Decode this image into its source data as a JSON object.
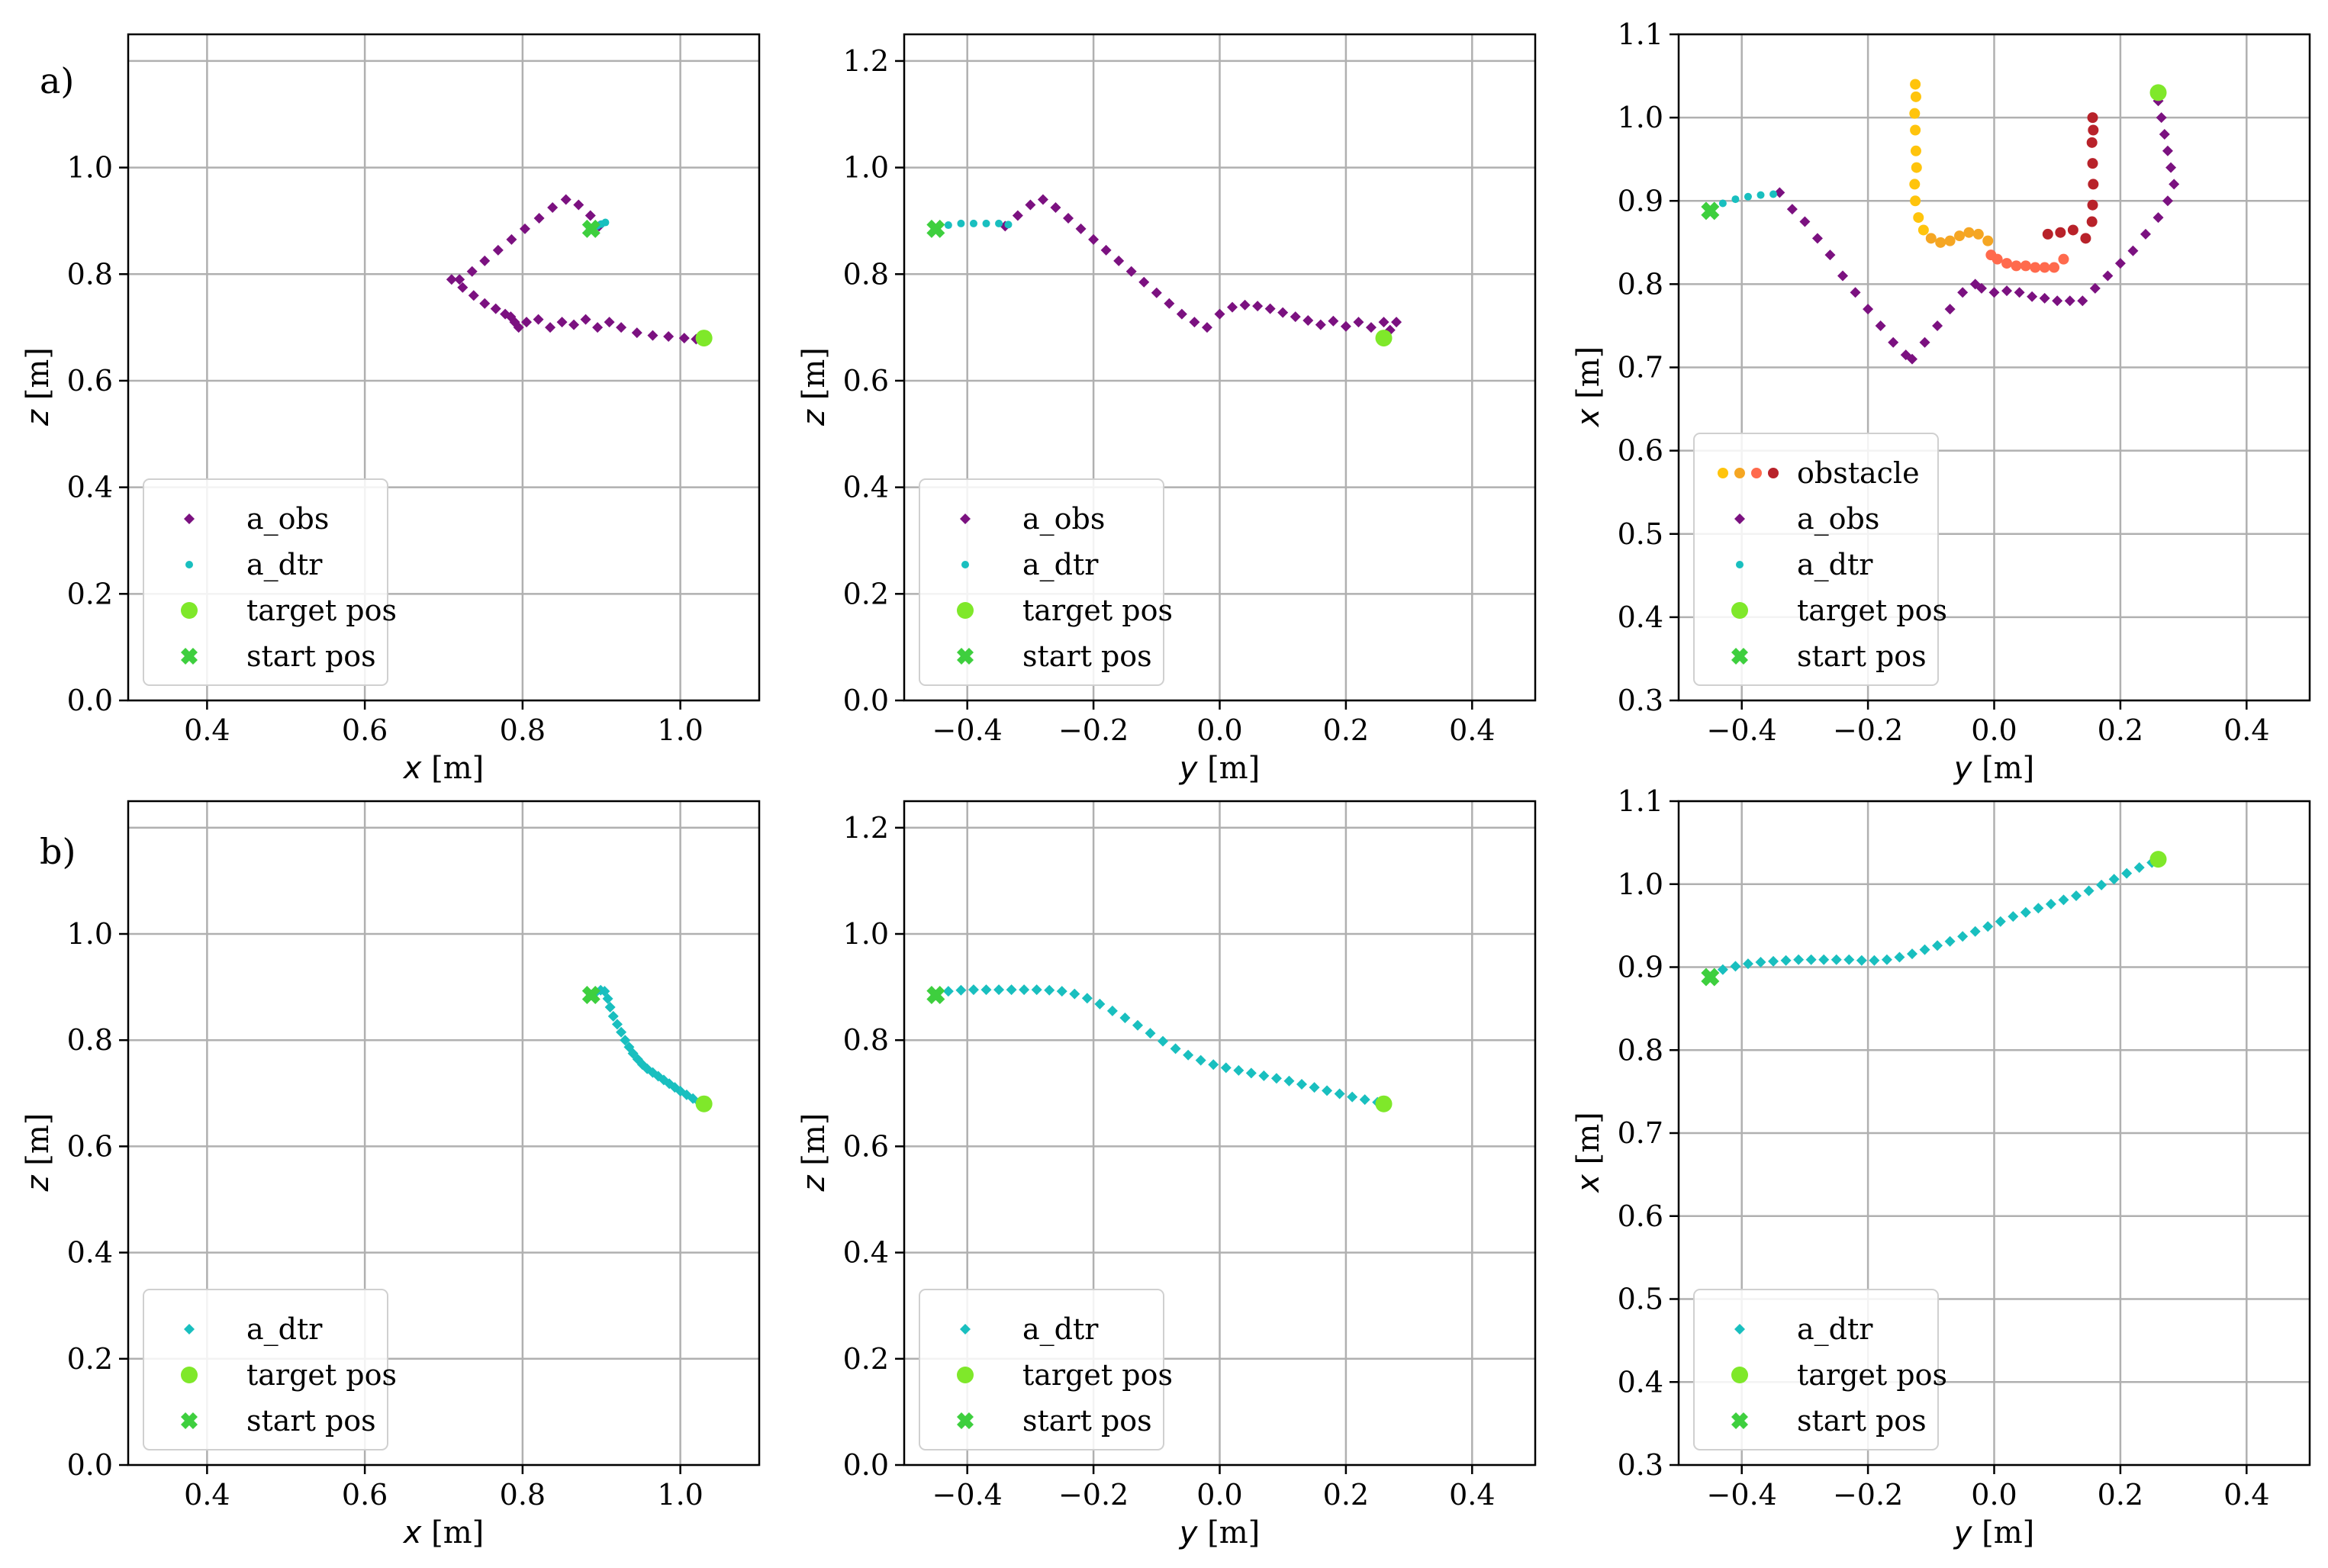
{
  "panel_labels": [
    "a)",
    "b)"
  ],
  "colors": {
    "a_obs": "#7b1180",
    "a_dtr": "#19bfbf",
    "target": "#7fe82a",
    "start": "#3ecf3e",
    "grid": "#b0b0b0",
    "obstacle": [
      "#ffc40c",
      "#f5a623",
      "#ff6a4d",
      "#b8222a"
    ]
  },
  "legend_labels": {
    "obstacle": "obstacle",
    "a_obs": "a_obs",
    "a_dtr": "a_dtr",
    "target": "target pos",
    "start": "start pos"
  },
  "chart_data": [
    {
      "id": "a1",
      "type": "scatter",
      "xlabel_var": "x",
      "xlabel_unit": " [m]",
      "ylabel_var": "z",
      "ylabel_unit": " [m]",
      "xlim": [
        0.3,
        1.1
      ],
      "ylim": [
        0,
        1.25
      ],
      "xticks": [
        "0.4",
        "0.6",
        "0.8",
        "1.0"
      ],
      "yticks": [
        "0.0",
        "0.2",
        "0.4",
        "0.6",
        "0.8",
        "1.0"
      ],
      "xtick_values": [
        0.4,
        0.6,
        0.8,
        1.0
      ],
      "ytick_values": [
        0.0,
        0.2,
        0.4,
        0.6,
        0.8,
        1.0
      ],
      "grid_values_y": [
        0.0,
        0.2,
        0.4,
        0.6,
        0.8,
        1.0,
        1.2
      ],
      "legend": [
        "a_obs",
        "a_dtr",
        "target",
        "start"
      ],
      "series": [
        {
          "name": "a_obs",
          "marker": "diamond",
          "x": [
            0.897,
            0.886,
            0.871,
            0.855,
            0.838,
            0.821,
            0.803,
            0.786,
            0.769,
            0.752,
            0.736,
            0.72,
            0.71,
            0.724,
            0.738,
            0.752,
            0.766,
            0.778,
            0.785,
            0.79,
            0.795,
            0.805,
            0.82,
            0.835,
            0.85,
            0.865,
            0.88,
            0.895,
            0.91,
            0.925,
            0.945,
            0.965,
            0.985,
            1.005,
            1.02
          ],
          "y": [
            0.89,
            0.91,
            0.93,
            0.94,
            0.925,
            0.905,
            0.885,
            0.865,
            0.845,
            0.825,
            0.805,
            0.79,
            0.79,
            0.775,
            0.76,
            0.745,
            0.735,
            0.725,
            0.72,
            0.71,
            0.7,
            0.71,
            0.715,
            0.7,
            0.71,
            0.705,
            0.715,
            0.7,
            0.71,
            0.7,
            0.69,
            0.685,
            0.683,
            0.68,
            0.678
          ]
        },
        {
          "name": "a_dtr",
          "marker": "dot",
          "x": [
            0.885,
            0.89,
            0.895,
            0.9,
            0.905
          ],
          "y": [
            0.885,
            0.888,
            0.891,
            0.894,
            0.897
          ]
        }
      ],
      "target": [
        1.03,
        0.68
      ],
      "start": [
        0.887,
        0.885
      ]
    },
    {
      "id": "a2",
      "type": "scatter",
      "xlabel_var": "y",
      "xlabel_unit": " [m]",
      "ylabel_var": "z",
      "ylabel_unit": " [m]",
      "xlim": [
        -0.5,
        0.5
      ],
      "ylim": [
        0,
        1.25
      ],
      "xticks": [
        "−0.4",
        "−0.2",
        "0.0",
        "0.2",
        "0.4"
      ],
      "yticks": [
        "0.0",
        "0.2",
        "0.4",
        "0.6",
        "0.8",
        "1.0",
        "1.2"
      ],
      "xtick_values": [
        -0.4,
        -0.2,
        0.0,
        0.2,
        0.4
      ],
      "ytick_values": [
        0.0,
        0.2,
        0.4,
        0.6,
        0.8,
        1.0,
        1.2
      ],
      "grid_values_y": [
        0.0,
        0.2,
        0.4,
        0.6,
        0.8,
        1.0,
        1.2
      ],
      "legend": [
        "a_obs",
        "a_dtr",
        "target",
        "start"
      ],
      "series": [
        {
          "name": "a_obs",
          "marker": "diamond",
          "x": [
            -0.34,
            -0.32,
            -0.3,
            -0.28,
            -0.26,
            -0.24,
            -0.22,
            -0.2,
            -0.18,
            -0.16,
            -0.14,
            -0.12,
            -0.1,
            -0.08,
            -0.06,
            -0.04,
            -0.02,
            0.0,
            0.02,
            0.04,
            0.06,
            0.08,
            0.1,
            0.12,
            0.14,
            0.16,
            0.18,
            0.2,
            0.22,
            0.24,
            0.26,
            0.27,
            0.28
          ],
          "y": [
            0.89,
            0.91,
            0.93,
            0.94,
            0.925,
            0.905,
            0.885,
            0.865,
            0.845,
            0.825,
            0.805,
            0.785,
            0.765,
            0.745,
            0.725,
            0.71,
            0.7,
            0.725,
            0.738,
            0.742,
            0.74,
            0.735,
            0.728,
            0.72,
            0.713,
            0.705,
            0.712,
            0.702,
            0.71,
            0.7,
            0.71,
            0.695,
            0.71
          ]
        },
        {
          "name": "a_dtr",
          "marker": "dot",
          "x": [
            -0.45,
            -0.43,
            -0.41,
            -0.39,
            -0.37,
            -0.35,
            -0.335
          ],
          "y": [
            0.885,
            0.892,
            0.895,
            0.895,
            0.895,
            0.895,
            0.893
          ]
        }
      ],
      "target": [
        0.26,
        0.68
      ],
      "start": [
        -0.45,
        0.885
      ]
    },
    {
      "id": "a3",
      "type": "scatter",
      "xlabel_var": "y",
      "xlabel_unit": " [m]",
      "ylabel_var": "x",
      "ylabel_unit": " [m]",
      "xlim": [
        -0.5,
        0.5
      ],
      "ylim": [
        0.3,
        1.1
      ],
      "xticks": [
        "−0.4",
        "−0.2",
        "0.0",
        "0.2",
        "0.4"
      ],
      "yticks": [
        "0.3",
        "0.4",
        "0.5",
        "0.6",
        "0.7",
        "0.8",
        "0.9",
        "1.0",
        "1.1"
      ],
      "xtick_values": [
        -0.4,
        -0.2,
        0.0,
        0.2,
        0.4
      ],
      "ytick_values": [
        0.3,
        0.4,
        0.5,
        0.6,
        0.7,
        0.8,
        0.9,
        1.0,
        1.1
      ],
      "grid_values_y": [
        0.3,
        0.4,
        0.5,
        0.6,
        0.7,
        0.8,
        0.9,
        1.0,
        1.1
      ],
      "legend": [
        "obstacle",
        "a_obs",
        "a_dtr",
        "target",
        "start"
      ],
      "obstacle": {
        "x": [
          -0.125,
          -0.124,
          -0.126,
          -0.125,
          -0.124,
          -0.123,
          -0.126,
          -0.125,
          -0.12,
          -0.112,
          -0.1,
          -0.085,
          -0.07,
          -0.055,
          -0.04,
          -0.025,
          -0.01,
          -0.005,
          0.005,
          0.02,
          0.035,
          0.05,
          0.065,
          0.08,
          0.095,
          0.11,
          0.085,
          0.105,
          0.125,
          0.145,
          0.155,
          0.156,
          0.157,
          0.156,
          0.155,
          0.157,
          0.156
        ],
        "y": [
          1.04,
          1.025,
          1.005,
          0.985,
          0.96,
          0.94,
          0.92,
          0.9,
          0.88,
          0.865,
          0.855,
          0.85,
          0.852,
          0.858,
          0.862,
          0.86,
          0.852,
          0.835,
          0.83,
          0.825,
          0.822,
          0.822,
          0.82,
          0.82,
          0.82,
          0.83,
          0.86,
          0.862,
          0.865,
          0.855,
          0.875,
          0.895,
          0.92,
          0.945,
          0.97,
          0.985,
          1.0
        ],
        "colors": [
          0,
          0,
          0,
          0,
          0,
          0,
          0,
          0,
          0,
          0,
          1,
          1,
          1,
          1,
          1,
          1,
          1,
          2,
          2,
          2,
          2,
          2,
          2,
          2,
          2,
          2,
          3,
          3,
          3,
          3,
          3,
          3,
          3,
          3,
          3,
          3,
          3
        ]
      },
      "series": [
        {
          "name": "a_obs",
          "marker": "diamond",
          "x": [
            -0.34,
            -0.32,
            -0.3,
            -0.28,
            -0.26,
            -0.24,
            -0.22,
            -0.2,
            -0.18,
            -0.16,
            -0.14,
            -0.13,
            -0.11,
            -0.09,
            -0.07,
            -0.05,
            -0.03,
            -0.02,
            0.0,
            0.02,
            0.04,
            0.06,
            0.08,
            0.1,
            0.12,
            0.14,
            0.16,
            0.18,
            0.2,
            0.22,
            0.24,
            0.26,
            0.275,
            0.285,
            0.28,
            0.275,
            0.27,
            0.265,
            0.26
          ],
          "y": [
            0.91,
            0.89,
            0.875,
            0.855,
            0.835,
            0.81,
            0.79,
            0.77,
            0.75,
            0.73,
            0.715,
            0.71,
            0.73,
            0.75,
            0.77,
            0.79,
            0.8,
            0.795,
            0.79,
            0.792,
            0.79,
            0.785,
            0.783,
            0.78,
            0.78,
            0.78,
            0.795,
            0.81,
            0.825,
            0.84,
            0.86,
            0.88,
            0.9,
            0.92,
            0.94,
            0.96,
            0.98,
            1.0,
            1.02
          ]
        },
        {
          "name": "a_dtr",
          "marker": "dot",
          "x": [
            -0.45,
            -0.43,
            -0.41,
            -0.39,
            -0.37,
            -0.35
          ],
          "y": [
            0.888,
            0.897,
            0.902,
            0.905,
            0.907,
            0.908
          ]
        }
      ],
      "target": [
        0.26,
        1.03
      ],
      "start": [
        -0.45,
        0.888
      ]
    },
    {
      "id": "b1",
      "type": "scatter",
      "xlabel_var": "x",
      "xlabel_unit": " [m]",
      "ylabel_var": "z",
      "ylabel_unit": " [m]",
      "xlim": [
        0.3,
        1.1
      ],
      "ylim": [
        0,
        1.25
      ],
      "xticks": [
        "0.4",
        "0.6",
        "0.8",
        "1.0"
      ],
      "yticks": [
        "0.0",
        "0.2",
        "0.4",
        "0.6",
        "0.8",
        "1.0"
      ],
      "xtick_values": [
        0.4,
        0.6,
        0.8,
        1.0
      ],
      "ytick_values": [
        0.0,
        0.2,
        0.4,
        0.6,
        0.8,
        1.0
      ],
      "grid_values_y": [
        0.0,
        0.2,
        0.4,
        0.6,
        0.8,
        1.0,
        1.2
      ],
      "legend": [
        "a_dtr",
        "target",
        "start"
      ],
      "series": [
        {
          "name": "a_dtr",
          "marker": "diamond",
          "x": [
            0.887,
            0.893,
            0.899,
            0.904,
            0.908,
            0.911,
            0.915,
            0.92,
            0.925,
            0.93,
            0.935,
            0.94,
            0.946,
            0.952,
            0.958,
            0.965,
            0.972,
            0.979,
            0.986,
            0.993,
            1.0,
            1.008,
            1.016,
            1.024
          ],
          "y": [
            0.885,
            0.89,
            0.894,
            0.892,
            0.878,
            0.862,
            0.845,
            0.83,
            0.815,
            0.8,
            0.787,
            0.775,
            0.764,
            0.754,
            0.746,
            0.739,
            0.732,
            0.725,
            0.718,
            0.711,
            0.704,
            0.697,
            0.69,
            0.683
          ]
        }
      ],
      "target": [
        1.03,
        0.68
      ],
      "start": [
        0.887,
        0.885
      ]
    },
    {
      "id": "b2",
      "type": "scatter",
      "xlabel_var": "y",
      "xlabel_unit": " [m]",
      "ylabel_var": "z",
      "ylabel_unit": " [m]",
      "xlim": [
        -0.5,
        0.5
      ],
      "ylim": [
        0,
        1.25
      ],
      "xticks": [
        "−0.4",
        "−0.2",
        "0.0",
        "0.2",
        "0.4"
      ],
      "yticks": [
        "0.0",
        "0.2",
        "0.4",
        "0.6",
        "0.8",
        "1.0",
        "1.2"
      ],
      "xtick_values": [
        -0.4,
        -0.2,
        0.0,
        0.2,
        0.4
      ],
      "ytick_values": [
        0.0,
        0.2,
        0.4,
        0.6,
        0.8,
        1.0,
        1.2
      ],
      "grid_values_y": [
        0.0,
        0.2,
        0.4,
        0.6,
        0.8,
        1.0,
        1.2
      ],
      "legend": [
        "a_dtr",
        "target",
        "start"
      ],
      "series": [
        {
          "name": "a_dtr",
          "marker": "diamond",
          "x": [
            -0.45,
            -0.43,
            -0.41,
            -0.39,
            -0.37,
            -0.35,
            -0.33,
            -0.31,
            -0.29,
            -0.27,
            -0.25,
            -0.23,
            -0.21,
            -0.19,
            -0.17,
            -0.15,
            -0.13,
            -0.11,
            -0.09,
            -0.07,
            -0.05,
            -0.03,
            -0.01,
            0.01,
            0.03,
            0.05,
            0.07,
            0.09,
            0.11,
            0.13,
            0.15,
            0.17,
            0.19,
            0.21,
            0.23,
            0.25
          ],
          "y": [
            0.885,
            0.892,
            0.894,
            0.895,
            0.895,
            0.895,
            0.895,
            0.895,
            0.895,
            0.894,
            0.892,
            0.887,
            0.879,
            0.868,
            0.855,
            0.842,
            0.828,
            0.813,
            0.798,
            0.784,
            0.772,
            0.762,
            0.754,
            0.748,
            0.743,
            0.738,
            0.733,
            0.728,
            0.723,
            0.717,
            0.711,
            0.705,
            0.699,
            0.693,
            0.688,
            0.683
          ]
        }
      ],
      "target": [
        0.26,
        0.68
      ],
      "start": [
        -0.45,
        0.885
      ]
    },
    {
      "id": "b3",
      "type": "scatter",
      "xlabel_var": "y",
      "xlabel_unit": " [m]",
      "ylabel_var": "x",
      "ylabel_unit": " [m]",
      "xlim": [
        -0.5,
        0.5
      ],
      "ylim": [
        0.3,
        1.1
      ],
      "xticks": [
        "−0.4",
        "−0.2",
        "0.0",
        "0.2",
        "0.4"
      ],
      "yticks": [
        "0.3",
        "0.4",
        "0.5",
        "0.6",
        "0.7",
        "0.8",
        "0.9",
        "1.0",
        "1.1"
      ],
      "xtick_values": [
        -0.4,
        -0.2,
        0.0,
        0.2,
        0.4
      ],
      "ytick_values": [
        0.3,
        0.4,
        0.5,
        0.6,
        0.7,
        0.8,
        0.9,
        1.0,
        1.1
      ],
      "grid_values_y": [
        0.3,
        0.4,
        0.5,
        0.6,
        0.7,
        0.8,
        0.9,
        1.0,
        1.1
      ],
      "legend": [
        "a_dtr",
        "target",
        "start"
      ],
      "series": [
        {
          "name": "a_dtr",
          "marker": "diamond",
          "x": [
            -0.45,
            -0.43,
            -0.41,
            -0.39,
            -0.37,
            -0.35,
            -0.33,
            -0.31,
            -0.29,
            -0.27,
            -0.25,
            -0.23,
            -0.21,
            -0.19,
            -0.17,
            -0.15,
            -0.13,
            -0.11,
            -0.09,
            -0.07,
            -0.05,
            -0.03,
            -0.01,
            0.01,
            0.03,
            0.05,
            0.07,
            0.09,
            0.11,
            0.13,
            0.15,
            0.17,
            0.19,
            0.21,
            0.23,
            0.25
          ],
          "y": [
            0.888,
            0.897,
            0.901,
            0.904,
            0.906,
            0.907,
            0.908,
            0.909,
            0.909,
            0.909,
            0.909,
            0.909,
            0.908,
            0.908,
            0.909,
            0.912,
            0.916,
            0.921,
            0.926,
            0.931,
            0.937,
            0.943,
            0.949,
            0.955,
            0.961,
            0.966,
            0.971,
            0.976,
            0.981,
            0.986,
            0.992,
            0.999,
            1.006,
            1.013,
            1.02,
            1.026
          ]
        }
      ],
      "target": [
        0.26,
        1.03
      ],
      "start": [
        -0.45,
        0.888
      ]
    }
  ]
}
